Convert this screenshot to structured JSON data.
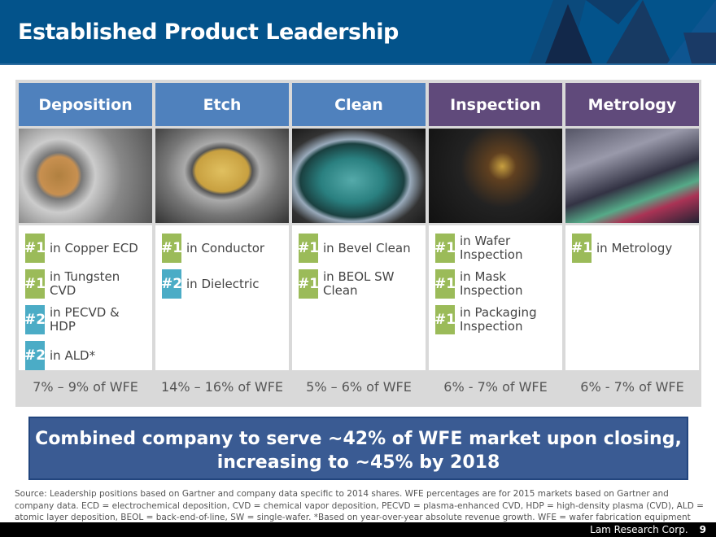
{
  "header": {
    "title": "Established Product Leadership"
  },
  "columns": [
    {
      "name": "Deposition",
      "color": "#4f81bd",
      "items": [
        {
          "rank": "#1",
          "text": "in Copper ECD",
          "c": "g"
        },
        {
          "rank": "#1",
          "text": "in Tungsten CVD",
          "c": "g"
        },
        {
          "rank": "#2",
          "text": "in PECVD & HDP",
          "c": "b"
        },
        {
          "rank": "#2",
          "text": "in ALD*",
          "c": "b"
        }
      ],
      "share": "7% – 9% of WFE"
    },
    {
      "name": "Etch",
      "color": "#4f81bd",
      "items": [
        {
          "rank": "#1",
          "text": "in Conductor",
          "c": "g"
        },
        {
          "rank": "#2",
          "text": "in Dielectric",
          "c": "b"
        }
      ],
      "share": "14% – 16% of WFE"
    },
    {
      "name": "Clean",
      "color": "#4f81bd",
      "items": [
        {
          "rank": "#1",
          "text": "in Bevel Clean",
          "c": "g"
        },
        {
          "rank": "#1",
          "text": "in BEOL SW Clean",
          "c": "g"
        }
      ],
      "share": "5% – 6% of WFE"
    },
    {
      "name": "Inspection",
      "color": "#604a7b",
      "items": [
        {
          "rank": "#1",
          "text": "in Wafer Inspection",
          "c": "g"
        },
        {
          "rank": "#1",
          "text": "in Mask Inspection",
          "c": "g"
        },
        {
          "rank": "#1",
          "text": "in Packaging Inspection",
          "c": "g"
        }
      ],
      "share": "6% - 7% of WFE"
    },
    {
      "name": "Metrology",
      "color": "#604a7b",
      "items": [
        {
          "rank": "#1",
          "text": "in Metrology",
          "c": "g"
        }
      ],
      "share": "6% - 7% of WFE"
    }
  ],
  "banner": {
    "line1": "Combined company to serve ~42% of WFE market upon closing,",
    "line2": "increasing to ~45% by 2018"
  },
  "source": "Source:  Leadership positions based on Gartner and company data specific to 2014 shares. WFE percentages are for 2015 markets based on Gartner and company data. ECD = electrochemical deposition, CVD = chemical vapor deposition, PECVD = plasma-enhanced CVD, HDP = high-density plasma (CVD), ALD = atomic layer deposition, BEOL = back-end-of-line, SW = single-wafer. *Based on year-over-year absolute revenue growth.  WFE = wafer fabrication equipment",
  "footer": {
    "company": "Lam Research Corp.",
    "page": "9"
  }
}
